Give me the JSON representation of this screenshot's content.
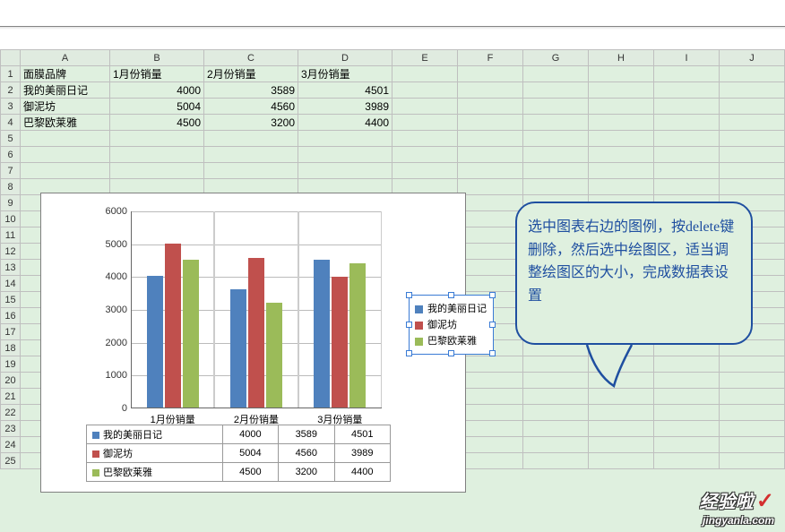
{
  "columns": [
    "A",
    "B",
    "C",
    "D",
    "E",
    "F",
    "G",
    "H",
    "I",
    "J"
  ],
  "row_count": 25,
  "table": {
    "headers": [
      "面膜品牌",
      "1月份销量",
      "2月份销量",
      "3月份销量"
    ],
    "rows": [
      [
        "我的美丽日记",
        4000,
        3589,
        4501
      ],
      [
        "御泥坊",
        5004,
        4560,
        3989
      ],
      [
        "巴黎欧莱雅",
        4500,
        3200,
        4400
      ]
    ]
  },
  "chart": {
    "type": "bar",
    "ymax": 6000,
    "ymin": 0,
    "ystep": 1000,
    "categories": [
      "1月份销量",
      "2月份销量",
      "3月份销量"
    ],
    "series": [
      {
        "name": "我的美丽日记",
        "color": "#4f81bd",
        "values": [
          4000,
          3589,
          4501
        ]
      },
      {
        "name": "御泥坊",
        "color": "#c0504d",
        "values": [
          5004,
          4560,
          3989
        ]
      },
      {
        "name": "巴黎欧莱雅",
        "color": "#9bbb59",
        "values": [
          4500,
          3200,
          4400
        ]
      }
    ],
    "grid_color": "#bbbbbb",
    "bg": "#ffffff"
  },
  "callout_text": "选中图表右边的图例，按delete键删除，然后选中绘图区，适当调整绘图区的大小，完成数据表设置",
  "callout_color": "#1f4fa0",
  "watermark": {
    "title": "经验啦",
    "url": "jingyanla.com"
  }
}
